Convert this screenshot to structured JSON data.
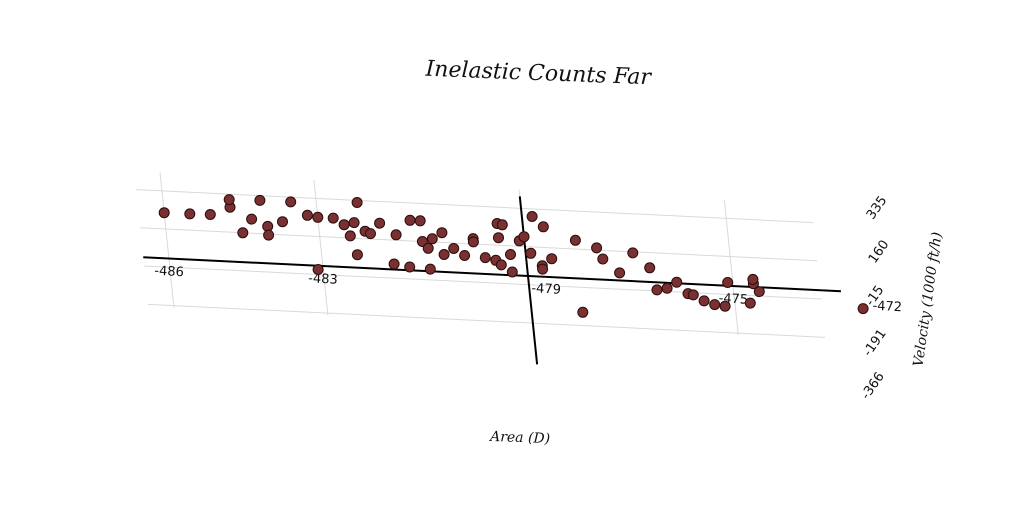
{
  "chart_data": {
    "type": "scatter",
    "title": "Inelastic Counts Far",
    "xlabel": "Area (D)",
    "ylabel": "Velocity (1000 ft/h)",
    "xlim": [
      -486.5,
      -472
    ],
    "ylim": [
      -366,
      420
    ],
    "x_ticks": [
      "-486",
      "-483",
      "-479",
      "-475",
      "-472"
    ],
    "y_ticks": [
      "335",
      "160",
      "-15",
      "-191",
      "-366"
    ],
    "grid": true,
    "points_color": "#7a3030",
    "points": [
      {
        "x": -486.0,
        "y": 235
      },
      {
        "x": -485.5,
        "y": 235
      },
      {
        "x": -485.1,
        "y": 237
      },
      {
        "x": -484.7,
        "y": 275
      },
      {
        "x": -484.7,
        "y": 310
      },
      {
        "x": -484.5,
        "y": 160
      },
      {
        "x": -484.3,
        "y": 225
      },
      {
        "x": -484.1,
        "y": 313
      },
      {
        "x": -484.0,
        "y": 195
      },
      {
        "x": -484.0,
        "y": 155
      },
      {
        "x": -483.7,
        "y": 220
      },
      {
        "x": -483.5,
        "y": 313
      },
      {
        "x": -483.2,
        "y": 255
      },
      {
        "x": -483.0,
        "y": 248
      },
      {
        "x": -483.1,
        "y": 8
      },
      {
        "x": -482.7,
        "y": 248
      },
      {
        "x": -482.5,
        "y": 220
      },
      {
        "x": -482.4,
        "y": 170
      },
      {
        "x": -482.3,
        "y": 232
      },
      {
        "x": -482.3,
        "y": 85
      },
      {
        "x": -482.2,
        "y": 325
      },
      {
        "x": -482.1,
        "y": 195
      },
      {
        "x": -482.0,
        "y": 185
      },
      {
        "x": -481.8,
        "y": 235
      },
      {
        "x": -481.6,
        "y": 50
      },
      {
        "x": -481.5,
        "y": 185
      },
      {
        "x": -481.3,
        "y": 40
      },
      {
        "x": -481.2,
        "y": 255
      },
      {
        "x": -481.0,
        "y": 255
      },
      {
        "x": -481.0,
        "y": 160
      },
      {
        "x": -480.9,
        "y": 130
      },
      {
        "x": -480.9,
        "y": 35
      },
      {
        "x": -480.8,
        "y": 175
      },
      {
        "x": -480.6,
        "y": 105
      },
      {
        "x": -480.6,
        "y": 205
      },
      {
        "x": -480.4,
        "y": 135
      },
      {
        "x": -480.2,
        "y": 105
      },
      {
        "x": -480.0,
        "y": 185
      },
      {
        "x": -480.0,
        "y": 170
      },
      {
        "x": -479.8,
        "y": 100
      },
      {
        "x": -479.6,
        "y": 90
      },
      {
        "x": -479.5,
        "y": 260
      },
      {
        "x": -479.5,
        "y": 195
      },
      {
        "x": -479.5,
        "y": 70
      },
      {
        "x": -479.4,
        "y": 255
      },
      {
        "x": -479.3,
        "y": 120
      },
      {
        "x": -479.3,
        "y": 40
      },
      {
        "x": -479.1,
        "y": 185
      },
      {
        "x": -479.0,
        "y": 205
      },
      {
        "x": -478.9,
        "y": 130
      },
      {
        "x": -478.8,
        "y": 300
      },
      {
        "x": -478.7,
        "y": 75
      },
      {
        "x": -478.7,
        "y": 60
      },
      {
        "x": -478.6,
        "y": 255
      },
      {
        "x": -478.5,
        "y": 110
      },
      {
        "x": -478.0,
        "y": 200
      },
      {
        "x": -478.0,
        "y": -130
      },
      {
        "x": -477.6,
        "y": 170
      },
      {
        "x": -477.5,
        "y": 120
      },
      {
        "x": -477.2,
        "y": 60
      },
      {
        "x": -476.9,
        "y": 155
      },
      {
        "x": -476.6,
        "y": 90
      },
      {
        "x": -476.5,
        "y": -10
      },
      {
        "x": -476.3,
        "y": 0
      },
      {
        "x": -476.1,
        "y": 30
      },
      {
        "x": -475.9,
        "y": -20
      },
      {
        "x": -475.8,
        "y": -25
      },
      {
        "x": -475.6,
        "y": -50
      },
      {
        "x": -475.4,
        "y": -65
      },
      {
        "x": -475.2,
        "y": -70
      },
      {
        "x": -475.1,
        "y": 40
      },
      {
        "x": -474.7,
        "y": -50
      },
      {
        "x": -474.6,
        "y": 40
      },
      {
        "x": -474.5,
        "y": 5
      },
      {
        "x": -474.6,
        "y": 60
      },
      {
        "x": -472.5,
        "y": -50
      }
    ]
  }
}
